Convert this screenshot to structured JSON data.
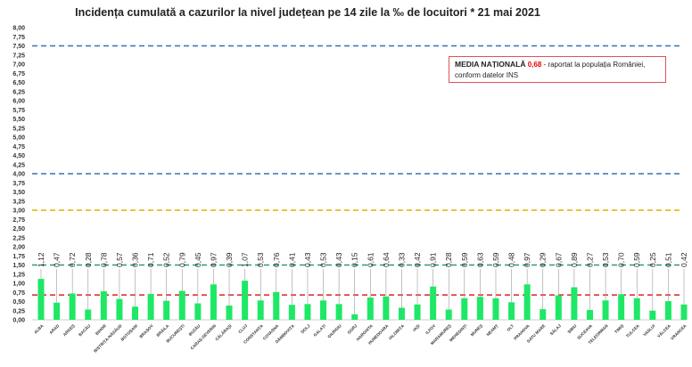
{
  "chart_data": {
    "type": "bar",
    "title": "Incidența cumulată a cazurilor la nivel județean pe 14 zile la ‰ de locuitori *  21 mai 2021",
    "xlabel": "",
    "ylabel": "",
    "ylim": [
      0,
      8
    ],
    "ytick_step": 0.25,
    "grid": false,
    "bar_color": "#1ee866",
    "categories": [
      "ALBA",
      "ARAD",
      "ARGEȘ",
      "BACĂU",
      "BIHOR",
      "BISTRIȚA-NĂSĂUD",
      "BOTOȘANI",
      "BRAȘOV",
      "BRĂILA",
      "BUCUREȘTI",
      "BUZĂU",
      "CARAȘ-SEVERIN",
      "CĂLĂRAȘI",
      "CLUJ",
      "CONSTANȚA",
      "COVASNA",
      "DÂMBOVIȚA",
      "DOLJ",
      "GALAȚI",
      "GIURGIU",
      "GORJ",
      "HARGHITA",
      "HUNEDOARA",
      "IALOMIȚA",
      "IAȘI",
      "ILFOV",
      "MARAMUREȘ",
      "MEHEDINȚI",
      "MUREȘ",
      "NEAMȚ",
      "OLT",
      "PRAHOVA",
      "SATU MARE",
      "SĂLAJ",
      "SIBIU",
      "SUCEAVA",
      "TELEORMAN",
      "TIMIȘ",
      "TULCEA",
      "VASLUI",
      "VÂLCEA",
      "VRANCEA"
    ],
    "values": [
      1.12,
      0.47,
      0.72,
      0.28,
      0.78,
      0.57,
      0.36,
      0.71,
      0.52,
      0.79,
      0.45,
      0.97,
      0.39,
      1.07,
      0.53,
      0.76,
      0.41,
      0.43,
      0.53,
      0.43,
      0.15,
      0.61,
      0.64,
      0.33,
      0.42,
      0.91,
      0.28,
      0.59,
      0.63,
      0.59,
      0.48,
      0.97,
      0.29,
      0.67,
      0.89,
      0.27,
      0.53,
      0.7,
      0.59,
      0.25,
      0.51,
      0.42
    ],
    "reference_lines": [
      {
        "value": 7.5,
        "color": "#2e75b6"
      },
      {
        "value": 4.0,
        "color": "#2e75b6"
      },
      {
        "value": 3.0,
        "color": "#e0b000"
      },
      {
        "value": 1.5,
        "color": "#2e9e6a"
      },
      {
        "value": 0.68,
        "color": "#e02020"
      }
    ],
    "annotation": {
      "heading": "MEDIA NAȚIONALĂ",
      "value": "0,68",
      "text1": " - raportat la populația României,",
      "text2": "conform datelor INS"
    }
  }
}
